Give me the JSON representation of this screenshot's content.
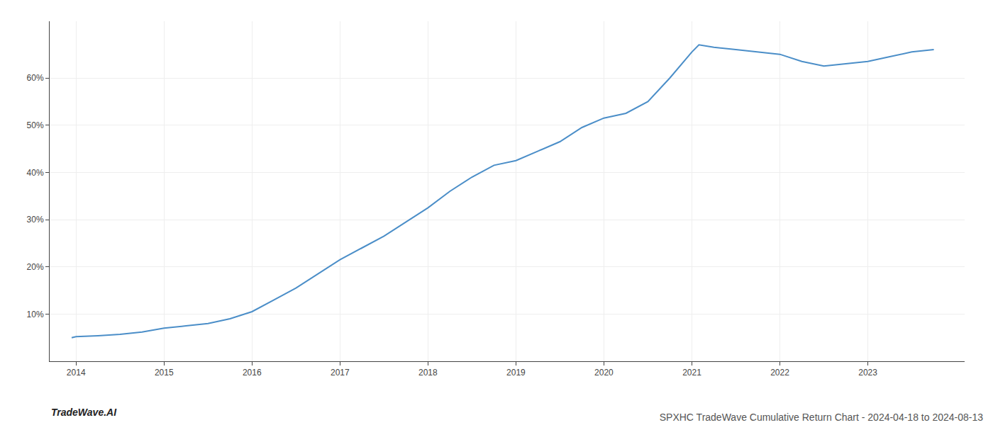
{
  "chart_data": {
    "type": "line",
    "title": "SPXHC TradeWave Cumulative Return Chart - 2024-04-18 to 2024-08-13",
    "annotations": [
      "TradeWave.AI"
    ],
    "x": [
      2013.95,
      2014.0,
      2014.25,
      2014.5,
      2014.75,
      2015.0,
      2015.25,
      2015.5,
      2015.75,
      2016.0,
      2016.25,
      2016.5,
      2016.75,
      2017.0,
      2017.25,
      2017.5,
      2017.75,
      2018.0,
      2018.25,
      2018.5,
      2018.75,
      2019.0,
      2019.25,
      2019.5,
      2019.75,
      2020.0,
      2020.25,
      2020.5,
      2020.75,
      2021.0,
      2021.08,
      2021.25,
      2021.5,
      2021.75,
      2022.0,
      2022.25,
      2022.5,
      2022.75,
      2023.0,
      2023.25,
      2023.5,
      2023.75
    ],
    "values": [
      5.0,
      5.2,
      5.4,
      5.7,
      6.2,
      7.0,
      7.5,
      8.0,
      9.0,
      10.5,
      13.0,
      15.5,
      18.5,
      21.5,
      24.0,
      26.5,
      29.5,
      32.5,
      36.0,
      39.0,
      41.5,
      42.5,
      44.5,
      46.5,
      49.5,
      51.5,
      52.5,
      55.0,
      60.0,
      65.5,
      67.0,
      66.5,
      66.0,
      65.5,
      65.0,
      63.5,
      62.5,
      63.0,
      63.5,
      64.5,
      65.5,
      66.0
    ],
    "color": "#4b8ec8",
    "xlim": [
      2013.7,
      2024.1
    ],
    "ylim": [
      0,
      72
    ],
    "xticks": [
      2014,
      2015,
      2016,
      2017,
      2018,
      2019,
      2020,
      2021,
      2022,
      2023
    ],
    "yticks": [
      {
        "value": 10,
        "label": "10%"
      },
      {
        "value": 20,
        "label": "20%"
      },
      {
        "value": 30,
        "label": "30%"
      },
      {
        "value": 40,
        "label": "40%"
      },
      {
        "value": 50,
        "label": "50%"
      },
      {
        "value": 60,
        "label": "60%"
      }
    ],
    "grid": true
  }
}
